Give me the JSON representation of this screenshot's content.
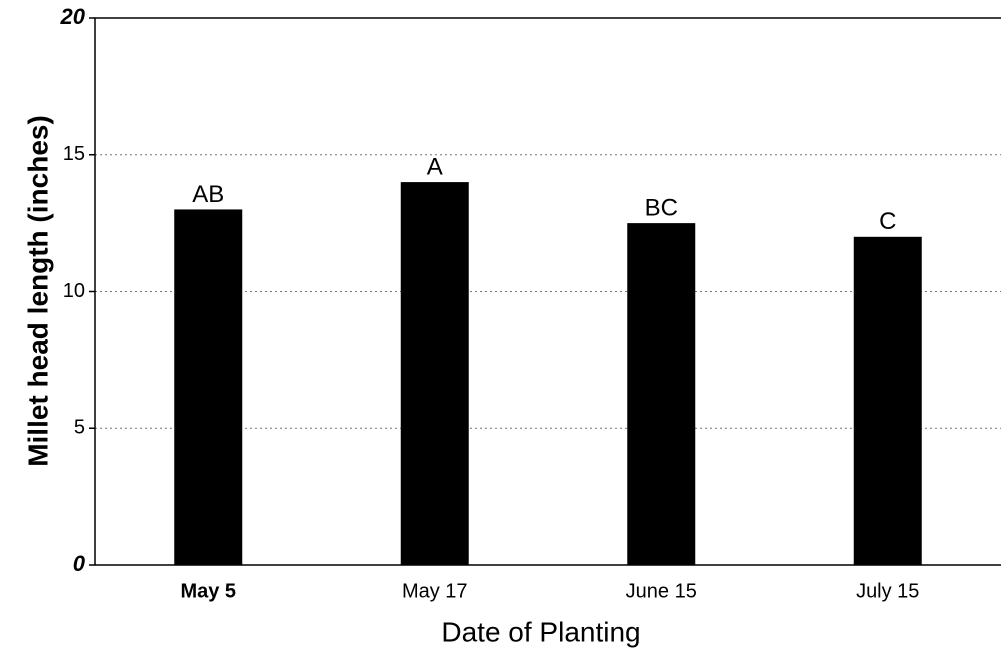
{
  "chart_data": {
    "type": "bar",
    "categories": [
      "May 5",
      "May 17",
      "June 15",
      "July 15"
    ],
    "values": [
      13,
      14,
      12.5,
      12
    ],
    "letters": [
      "AB",
      "A",
      "BC",
      "C"
    ],
    "color": "#000000",
    "ylabel": "Millet head length (inches)",
    "xlabel": "Date of Planting",
    "ylim": [
      0,
      20
    ],
    "yticks": [
      0,
      5,
      10,
      15,
      20
    ],
    "grid": true
  }
}
